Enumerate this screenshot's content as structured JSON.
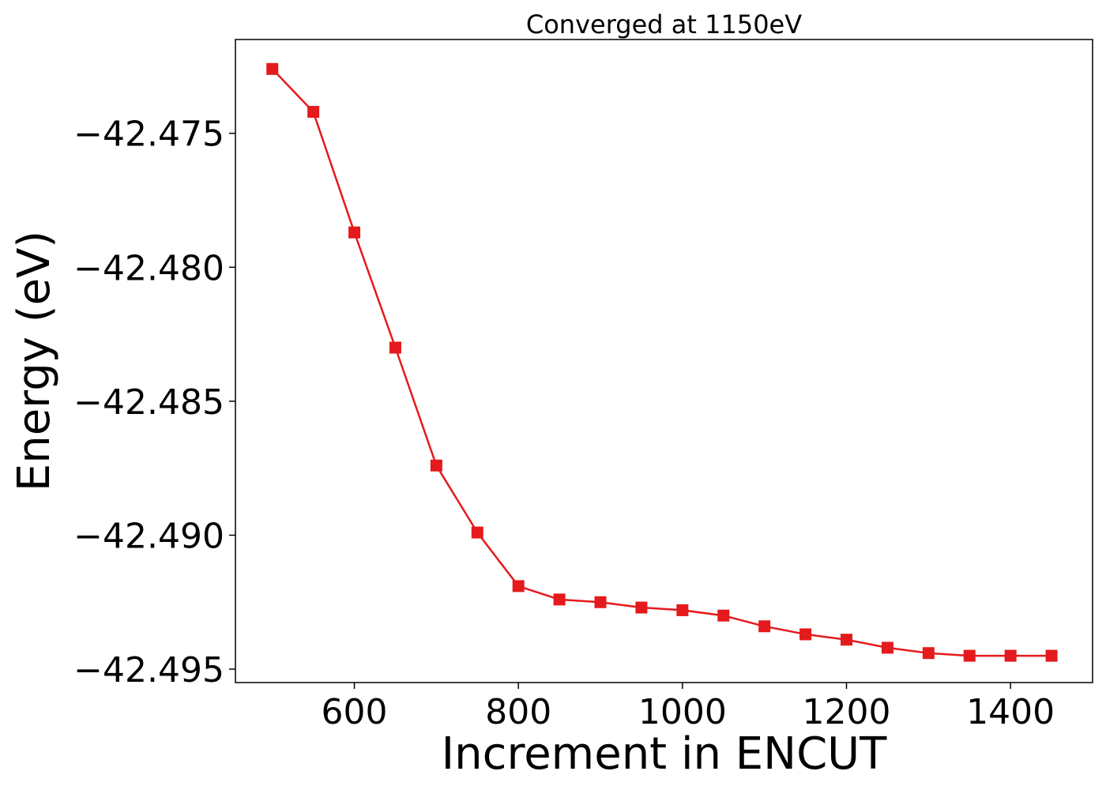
{
  "chart_data": {
    "type": "line",
    "title": "Converged at 1150eV",
    "xlabel": "Increment in ENCUT",
    "ylabel": "Energy (eV)",
    "xlim": [
      455,
      1500
    ],
    "ylim": [
      -42.4955,
      -42.4715
    ],
    "xticks": [
      600,
      800,
      1000,
      1200,
      1400
    ],
    "xtick_labels": [
      "600",
      "800",
      "1000",
      "1200",
      "1400"
    ],
    "yticks": [
      -42.475,
      -42.48,
      -42.485,
      -42.49,
      -42.495
    ],
    "ytick_labels": [
      "−42.475",
      "−42.480",
      "−42.485",
      "−42.490",
      "−42.495"
    ],
    "grid": false,
    "series": [
      {
        "color": "#e41a1c",
        "marker": "square",
        "x": [
          500,
          550,
          600,
          650,
          700,
          750,
          800,
          850,
          900,
          950,
          1000,
          1050,
          1100,
          1150,
          1200,
          1250,
          1300,
          1350,
          1400,
          1450
        ],
        "y": [
          -42.4726,
          -42.4742,
          -42.4787,
          -42.483,
          -42.4874,
          -42.4899,
          -42.4919,
          -42.4924,
          -42.4925,
          -42.4927,
          -42.4928,
          -42.493,
          -42.4934,
          -42.4937,
          -42.4939,
          -42.4942,
          -42.4944,
          -42.4945,
          -42.4945,
          -42.4945
        ]
      }
    ]
  }
}
